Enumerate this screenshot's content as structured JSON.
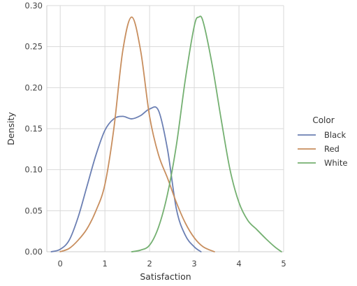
{
  "chart_data": {
    "type": "line",
    "title": "",
    "xlabel": "Satisfaction",
    "ylabel": "Density",
    "xlim": [
      -0.3,
      5.0
    ],
    "ylim": [
      0,
      0.3
    ],
    "xticks": [
      0,
      1,
      2,
      3,
      4,
      5
    ],
    "yticks": [
      0.0,
      0.05,
      0.1,
      0.15,
      0.2,
      0.25,
      0.3
    ],
    "ytick_labels": [
      "0.00",
      "0.05",
      "0.10",
      "0.15",
      "0.20",
      "0.25",
      "0.30"
    ],
    "grid": true,
    "legend": {
      "title": "Color",
      "placement": "right"
    },
    "series": [
      {
        "name": "Black",
        "color": "#6b7fb3",
        "x": [
          -0.2,
          0.0,
          0.2,
          0.4,
          0.6,
          0.8,
          1.0,
          1.2,
          1.4,
          1.6,
          1.8,
          2.0,
          2.2,
          2.4,
          2.6,
          2.8,
          3.0,
          3.15
        ],
        "y": [
          0.0,
          0.003,
          0.014,
          0.042,
          0.08,
          0.118,
          0.148,
          0.162,
          0.165,
          0.162,
          0.166,
          0.174,
          0.172,
          0.125,
          0.052,
          0.02,
          0.006,
          0.0
        ]
      },
      {
        "name": "Red",
        "color": "#c88e5e",
        "x": [
          0.0,
          0.2,
          0.4,
          0.6,
          0.8,
          1.0,
          1.2,
          1.4,
          1.6,
          1.8,
          2.0,
          2.2,
          2.4,
          2.6,
          2.8,
          3.0,
          3.2,
          3.45
        ],
        "y": [
          0.0,
          0.004,
          0.014,
          0.028,
          0.05,
          0.082,
          0.15,
          0.245,
          0.286,
          0.245,
          0.165,
          0.118,
          0.09,
          0.06,
          0.035,
          0.017,
          0.006,
          0.0
        ]
      },
      {
        "name": "White",
        "color": "#74b071",
        "x": [
          1.6,
          1.8,
          2.0,
          2.2,
          2.4,
          2.6,
          2.8,
          3.0,
          3.1,
          3.2,
          3.4,
          3.6,
          3.8,
          4.0,
          4.2,
          4.4,
          4.6,
          4.8,
          4.95
        ],
        "y": [
          0.0,
          0.002,
          0.008,
          0.03,
          0.07,
          0.13,
          0.21,
          0.275,
          0.286,
          0.28,
          0.228,
          0.162,
          0.1,
          0.06,
          0.038,
          0.027,
          0.016,
          0.006,
          0.0
        ]
      }
    ]
  }
}
